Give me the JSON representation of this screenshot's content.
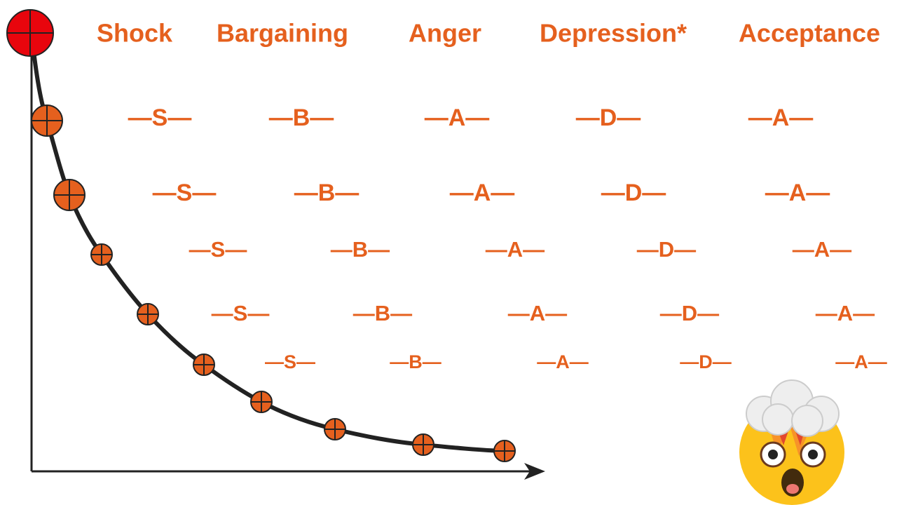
{
  "headers": [
    "Shock",
    "Bargaining",
    "Anger",
    "Depression*",
    "Acceptance"
  ],
  "rows": [
    [
      "—S—",
      "—B—",
      "—A—",
      "—D—",
      "—A—"
    ],
    [
      "—S—",
      "—B—",
      "—A—",
      "—D—",
      "—A—"
    ],
    [
      "—S—",
      "—B—",
      "—A—",
      "—D—",
      "—A—"
    ],
    [
      "—S—",
      "—B—",
      "—A—",
      "—D—",
      "—A—"
    ],
    [
      "—S—",
      "—B—",
      "—A—",
      "—D—",
      "—A—"
    ]
  ]
}
